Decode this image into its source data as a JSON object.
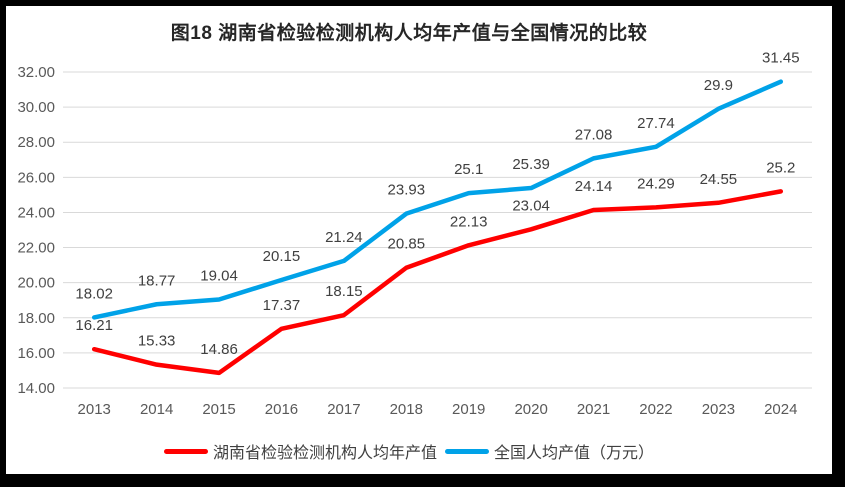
{
  "frame": {
    "border_color": "#000000",
    "chart_background": "#FFFFFF"
  },
  "chart_data": {
    "type": "line",
    "title": "图18 湖南省检验检测机构人均年产值与全国情况的比较",
    "categories": [
      "2013",
      "2014",
      "2015",
      "2016",
      "2017",
      "2018",
      "2019",
      "2020",
      "2021",
      "2022",
      "2023",
      "2024"
    ],
    "series": [
      {
        "name": "湖南省检验检测机构人均年产值",
        "color": "#FF0000",
        "values": [
          16.21,
          15.33,
          14.86,
          17.37,
          18.15,
          20.85,
          22.13,
          23.04,
          24.14,
          24.29,
          24.55,
          25.2
        ],
        "labels": [
          "16.21",
          "15.33",
          "14.86",
          "17.37",
          "18.15",
          "20.85",
          "22.13",
          "23.04",
          "24.14",
          "24.29",
          "24.55",
          "25.2"
        ]
      },
      {
        "name": "全国人均产值（万元）",
        "color": "#00A2E8",
        "values": [
          18.02,
          18.77,
          19.04,
          20.15,
          21.24,
          23.93,
          25.1,
          25.39,
          27.08,
          27.74,
          29.9,
          31.45
        ],
        "labels": [
          "18.02",
          "18.77",
          "19.04",
          "20.15",
          "21.24",
          "23.93",
          "25.1",
          "25.39",
          "27.08",
          "27.74",
          "29.9",
          "31.45"
        ]
      }
    ],
    "ylim": [
      14,
      32
    ],
    "ytick_step": 2,
    "yticks": [
      "14.00",
      "16.00",
      "18.00",
      "20.00",
      "22.00",
      "24.00",
      "26.00",
      "28.00",
      "30.00",
      "32.00"
    ],
    "grid": true,
    "legend_position": "bottom",
    "styles": {
      "gridline_color": "#D9D9D9",
      "axis_text_color": "#595959",
      "data_label_color": "#404040",
      "title_color": "#262626",
      "line_width": 4.5
    }
  }
}
